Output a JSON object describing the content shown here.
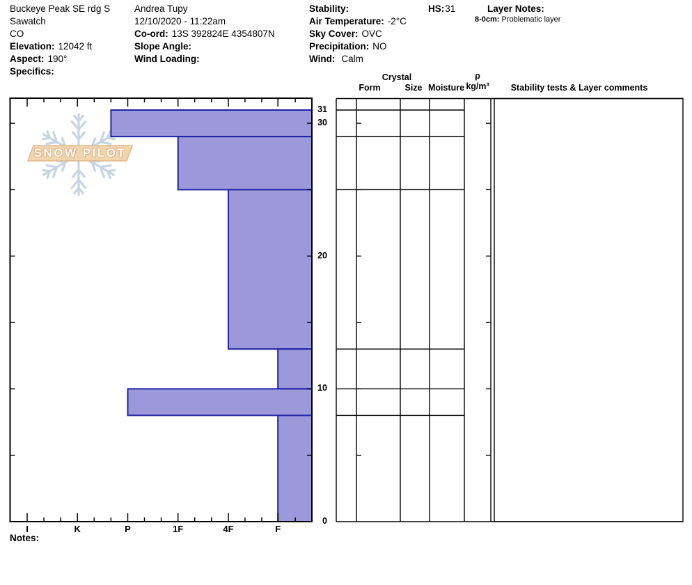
{
  "site": {
    "name": "Buckeye Peak SE rdg S",
    "range": "Sawatch",
    "state": "CO",
    "elevation": {
      "label": "Elevation:",
      "value": "12042 ft"
    },
    "aspect": {
      "label": "Aspect:",
      "value": "190°"
    },
    "specifics": {
      "label": "Specifics:",
      "value": ""
    }
  },
  "observer": {
    "name": "Andrea Tupy",
    "datetime": "12/10/2020 - 11:22am",
    "coord": {
      "label": "Co-ord:",
      "value": "13S 392824E 4354807N"
    },
    "slope_angle": {
      "label": "Slope Angle:",
      "value": ""
    },
    "wind_loading": {
      "label": "Wind Loading:",
      "value": ""
    }
  },
  "conditions": {
    "stability": {
      "label": "Stability:",
      "value": ""
    },
    "air_temperature": {
      "label": "Air Temperature:",
      "value": "-2°C"
    },
    "sky_cover": {
      "label": "Sky Cover:",
      "value": "OVC"
    },
    "precipitation": {
      "label": "Precipitation:",
      "value": "NO"
    },
    "wind": {
      "label": "Wind:",
      "value": "Calm"
    }
  },
  "summary": {
    "hs_label": "HS:",
    "hs_value": "31",
    "layer_notes_label": "Layer Notes:",
    "layer_note_range": "8-0cm:",
    "layer_note_text": "Problematic layer"
  },
  "logo": {
    "text": "SNOW PILOT",
    "banner_fill": "#f2d5ae",
    "banner_border": "#e0b88c",
    "flake_color": "#c7d5e3"
  },
  "table": {
    "header": {
      "form": "Form",
      "crystal": "Crystal",
      "size": "Size",
      "moisture": "Moisture",
      "density_symbol": "ρ",
      "density_units": "kg/m³",
      "comments": "Stability tests & Layer comments"
    }
  },
  "notes_label": "Notes:",
  "chart_data": {
    "type": "bar",
    "x_categories": [
      "I",
      "K",
      "P",
      "1F",
      "4F",
      "F"
    ],
    "y_tick_labels": [
      "31",
      "30",
      "20",
      "10",
      "0"
    ],
    "y_tick_values": [
      31,
      30,
      20,
      10,
      0
    ],
    "y_minor_tick_interval_cm": 5,
    "ylim": [
      0,
      31.9
    ],
    "hs_cm": 31,
    "layers": [
      {
        "top_cm": 31,
        "bottom_cm": 29,
        "hardness": "P+"
      },
      {
        "top_cm": 29,
        "bottom_cm": 25,
        "hardness": "1F"
      },
      {
        "top_cm": 25,
        "bottom_cm": 13,
        "hardness": "4F"
      },
      {
        "top_cm": 13,
        "bottom_cm": 10,
        "hardness": "F"
      },
      {
        "top_cm": 10,
        "bottom_cm": 8,
        "hardness": "P"
      },
      {
        "top_cm": 8,
        "bottom_cm": 0,
        "hardness": "F"
      }
    ],
    "colors": {
      "bar_fill": "#9b99d9",
      "bar_border": "#2121a8",
      "frame": "#000000"
    }
  }
}
